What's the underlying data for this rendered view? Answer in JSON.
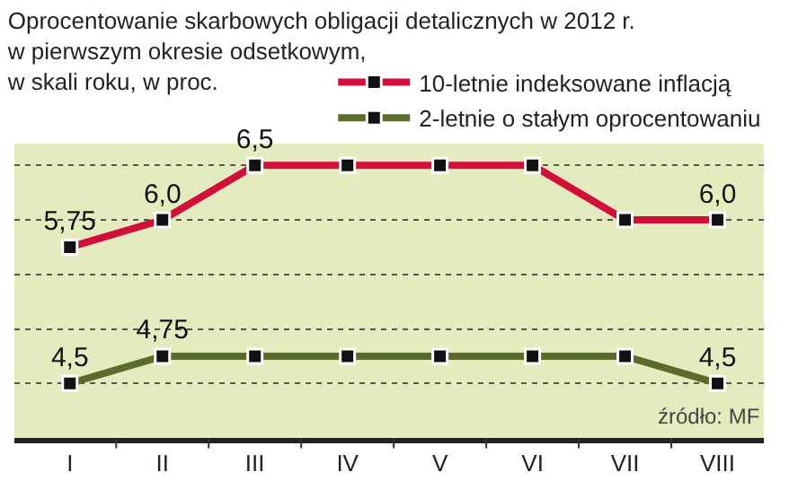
{
  "chart_data": {
    "type": "line",
    "title": "Oprocentowanie skarbowych obligacji detalicznych w 2012 r.\nw pierwszym okresie odsetkowym,\nw skali roku, w proc.",
    "categories": [
      "I",
      "II",
      "III",
      "IV",
      "V",
      "VI",
      "VII",
      "VIII"
    ],
    "series": [
      {
        "name": "10-letnie indeksowane inflacją",
        "color": "#d0103a",
        "values": [
          5.75,
          6.0,
          6.5,
          6.5,
          6.5,
          6.5,
          6.0,
          6.0
        ],
        "value_labels": [
          "5,75",
          "6,0",
          "6,5",
          null,
          null,
          null,
          null,
          "6,0"
        ]
      },
      {
        "name": "2-letnie o stałym oprocentowaniu",
        "color": "#5b6b2b",
        "values": [
          4.5,
          4.75,
          4.75,
          4.75,
          4.75,
          4.75,
          4.75,
          4.5
        ],
        "value_labels": [
          "4,5",
          "4,75",
          null,
          null,
          null,
          null,
          null,
          "4,5"
        ]
      }
    ],
    "ylim": [
      4.0,
      6.7
    ],
    "yticks": [
      {
        "value": 4.5,
        "label": null
      },
      {
        "value": 5.0,
        "label": null
      },
      {
        "value": 5.5,
        "label": null
      },
      {
        "value": 6.0,
        "label": null
      },
      {
        "value": 6.5,
        "label": null
      }
    ],
    "tick_labels": "x",
    "grid": "y",
    "legend": "top right",
    "marker": "square",
    "line_style": "solid",
    "annotations": [
      "źródło: MF"
    ]
  }
}
